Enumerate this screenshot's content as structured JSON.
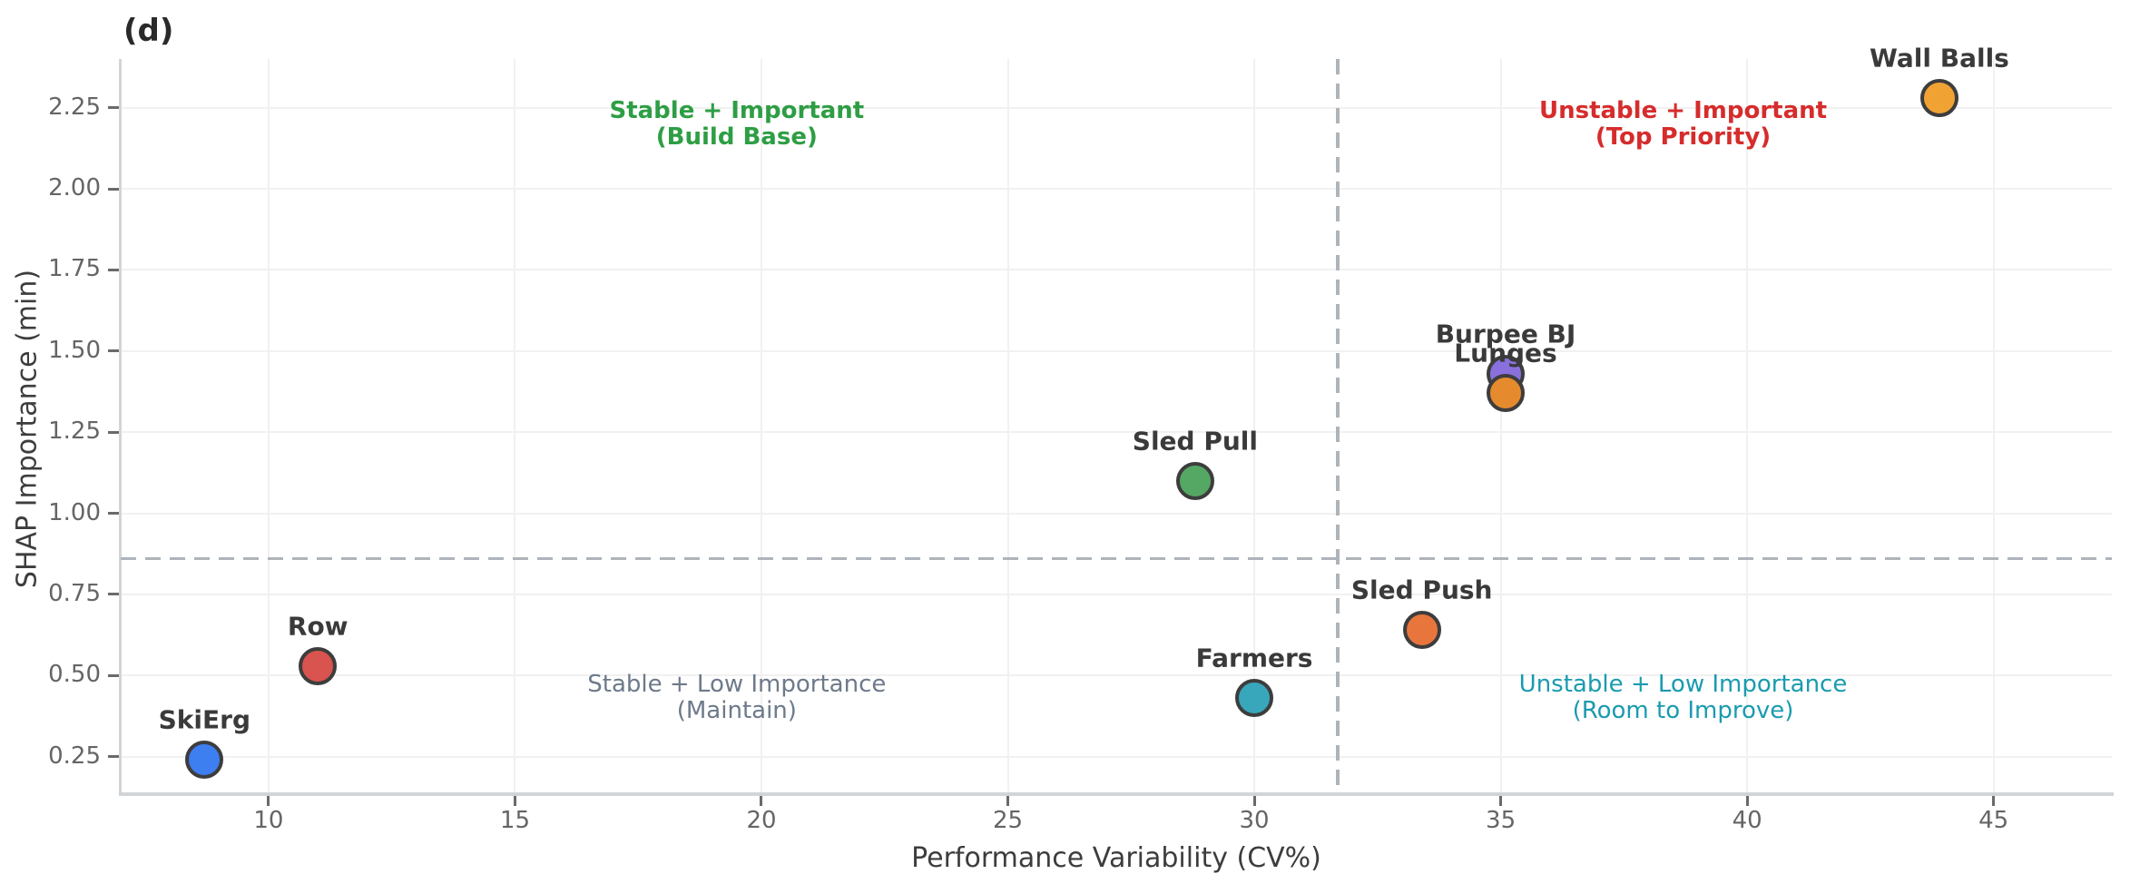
{
  "figure": {
    "panel_label": "(d)"
  },
  "chart_data": {
    "type": "scatter",
    "panel_label": "(d)",
    "xlabel": "Performance Variability (CV%)",
    "ylabel": "SHAP Importance (min)",
    "xlim": [
      7.0,
      47.4
    ],
    "ylim": [
      0.14,
      2.4
    ],
    "grid": true,
    "xticks": [
      10,
      15,
      20,
      25,
      30,
      35,
      40,
      45
    ],
    "xtick_labels": [
      "10",
      "15",
      "20",
      "25",
      "30",
      "35",
      "40",
      "45"
    ],
    "yticks": [
      0.25,
      0.5,
      0.75,
      1.0,
      1.25,
      1.5,
      1.75,
      2.0,
      2.25
    ],
    "ytick_labels": [
      "0.25",
      "0.50",
      "0.75",
      "1.00",
      "1.25",
      "1.50",
      "1.75",
      "2.00",
      "2.25"
    ],
    "marker_edge_color": "#3d3d3d",
    "points": [
      {
        "name": "SkiErg",
        "x": 8.7,
        "y": 0.24,
        "color": "#3d7ef0"
      },
      {
        "name": "Row",
        "x": 11.0,
        "y": 0.53,
        "color": "#d9534f"
      },
      {
        "name": "Sled Pull",
        "x": 28.8,
        "y": 1.1,
        "color": "#55a863"
      },
      {
        "name": "Farmers",
        "x": 30.0,
        "y": 0.43,
        "color": "#38a7bc"
      },
      {
        "name": "Sled Push",
        "x": 33.4,
        "y": 0.64,
        "color": "#e8763c"
      },
      {
        "name": "Burpee BJ",
        "x": 35.1,
        "y": 1.43,
        "color": "#8a70dd"
      },
      {
        "name": "Lunges",
        "x": 35.1,
        "y": 1.37,
        "color": "#e68a2e"
      },
      {
        "name": "Wall Balls",
        "x": 43.9,
        "y": 2.28,
        "color": "#f0a233"
      }
    ],
    "reference_lines": {
      "style": "dashed",
      "color": "#aeb4b9",
      "vertical_x": 31.7,
      "horizontal_y": 0.86
    },
    "quadrant_labels": [
      {
        "id": "stable-important",
        "lines": [
          "Stable + Important",
          "(Build Base)"
        ],
        "x": 19.5,
        "y": 2.2,
        "color": "#2e9e44",
        "bold": true
      },
      {
        "id": "unstable-important",
        "lines": [
          "Unstable + Important",
          "(Top Priority)"
        ],
        "x": 38.7,
        "y": 2.2,
        "color": "#d62c2c",
        "bold": true
      },
      {
        "id": "stable-low",
        "lines": [
          "Stable + Low Importance",
          "(Maintain)"
        ],
        "x": 19.5,
        "y": 0.43,
        "color": "#6d7a8a",
        "bold": false
      },
      {
        "id": "unstable-low",
        "lines": [
          "Unstable + Low Importance",
          "(Room to Improve)"
        ],
        "x": 38.7,
        "y": 0.43,
        "color": "#1a9baf",
        "bold": false
      }
    ]
  }
}
